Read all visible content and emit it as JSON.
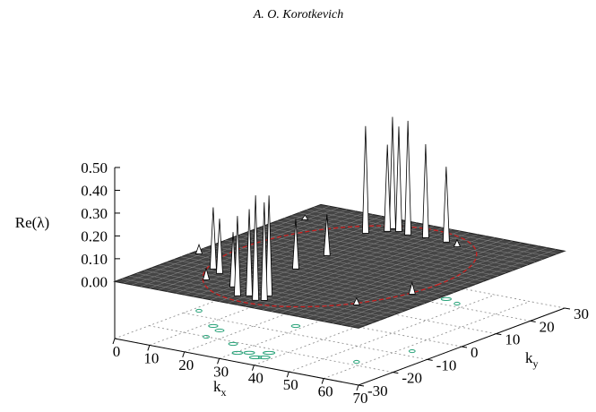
{
  "header": "A. O. Korotkevich",
  "chart_data": {
    "type": "surface3d",
    "zlabel": "Re(λ)",
    "xlabel": {
      "text": "k",
      "subscript": "x"
    },
    "ylabel": {
      "text": "k",
      "subscript": "y"
    },
    "xlim": [
      0,
      70
    ],
    "ylim": [
      -30,
      30
    ],
    "zlim": [
      -0.25,
      0.5
    ],
    "xticks": [
      0,
      10,
      20,
      30,
      40,
      50,
      60,
      70
    ],
    "yticks": [
      -30,
      -20,
      -10,
      0,
      10,
      20,
      30
    ],
    "zticks": [
      {
        "value": 0,
        "label": "0.00"
      },
      {
        "value": 0.1,
        "label": "0.10"
      },
      {
        "value": 0.2,
        "label": "0.20"
      },
      {
        "value": 0.3,
        "label": "0.30"
      },
      {
        "value": 0.4,
        "label": "0.40"
      },
      {
        "value": 0.5,
        "label": "0.50"
      }
    ],
    "surface_color": "#454545",
    "peak_color": "#ffffff",
    "contour_color": "#2aa37a",
    "circle": {
      "center": [
        35,
        0
      ],
      "radius": 28,
      "color": "#cc1f1f"
    },
    "peaks": [
      {
        "x": 12.3,
        "y": -13.8,
        "z": 0.27
      },
      {
        "x": 15.8,
        "y": -15.5,
        "z": 0.24
      },
      {
        "x": 30.6,
        "y": -25.3,
        "z": 0.35
      },
      {
        "x": 36.3,
        "y": -25.8,
        "z": 0.46
      },
      {
        "x": 38,
        "y": -25,
        "z": 0.43
      },
      {
        "x": 36.6,
        "y": -22.2,
        "z": 0.44
      },
      {
        "x": 32.8,
        "y": -24.1,
        "z": 0.38
      },
      {
        "x": 25.2,
        "y": -21.1,
        "z": 0.24
      },
      {
        "x": 28,
        "y": -5.7,
        "z": 0.22
      },
      {
        "x": 27.1,
        "y": 4.3,
        "z": 0.18
      },
      {
        "x": 23.1,
        "y": 19.6,
        "z": 0.47
      },
      {
        "x": 25.9,
        "y": 24.6,
        "z": 0.49
      },
      {
        "x": 28.5,
        "y": 23.8,
        "z": 0.46
      },
      {
        "x": 32,
        "y": 22.9,
        "z": 0.5
      },
      {
        "x": 26.3,
        "y": 22.7,
        "z": 0.38
      },
      {
        "x": 36.8,
        "y": 23.2,
        "z": 0.41
      },
      {
        "x": 42.9,
        "y": 23,
        "z": 0.33
      },
      {
        "x": 62.9,
        "y": -7.2,
        "z": 0.05
      },
      {
        "x": 57.8,
        "y": -18.2,
        "z": 0.03
      },
      {
        "x": 1.9,
        "y": -7.4,
        "z": 0.04
      },
      {
        "x": 4.7,
        "y": 20.6,
        "z": 0.02
      },
      {
        "x": 47.3,
        "y": 21.7,
        "z": 0.03
      },
      {
        "x": 16.5,
        "y": -20.1,
        "z": 0.05
      }
    ]
  }
}
